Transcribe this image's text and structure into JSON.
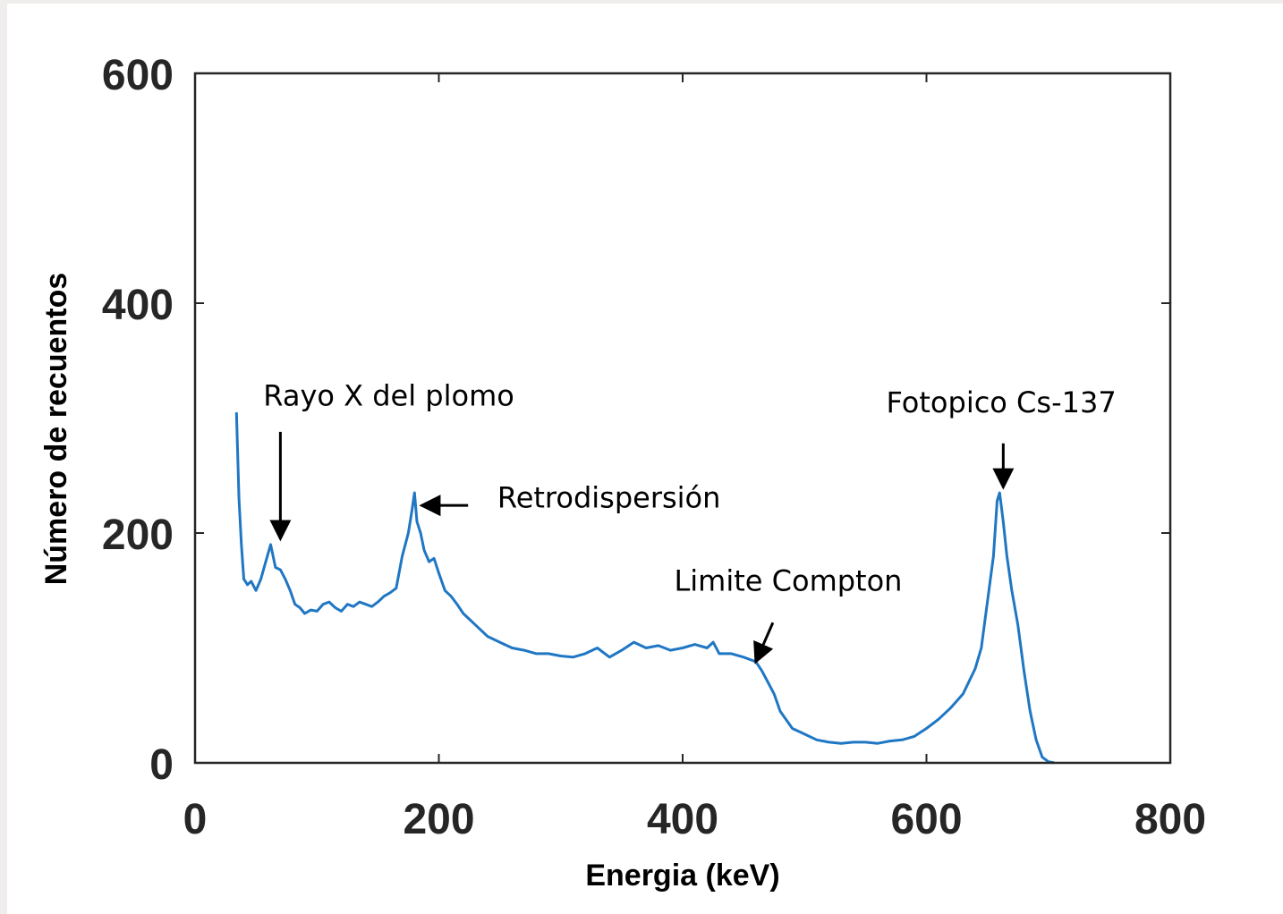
{
  "chart_data": {
    "type": "line",
    "title": "",
    "xlabel": "Energia (keV)",
    "ylabel": "Número de recuentos",
    "xlim": [
      0,
      800
    ],
    "ylim": [
      0,
      600
    ],
    "xticks": [
      0,
      200,
      400,
      600,
      800
    ],
    "yticks": [
      0,
      200,
      400,
      600
    ],
    "xtick_labels": [
      "0",
      "200",
      "400",
      "600",
      "800"
    ],
    "ytick_labels": [
      "0",
      "200",
      "400",
      "600"
    ],
    "grid": false,
    "line_color": "#1f77c4",
    "series": [
      {
        "name": "",
        "x": [
          34,
          36,
          38,
          40,
          43,
          46,
          50,
          54,
          58,
          62,
          66,
          70,
          74,
          78,
          82,
          86,
          90,
          95,
          100,
          105,
          110,
          115,
          120,
          125,
          130,
          135,
          140,
          145,
          150,
          155,
          160,
          165,
          170,
          175,
          178,
          180,
          182,
          185,
          188,
          192,
          196,
          200,
          205,
          210,
          215,
          220,
          225,
          230,
          240,
          250,
          260,
          270,
          280,
          290,
          300,
          310,
          320,
          330,
          340,
          350,
          360,
          370,
          380,
          390,
          400,
          410,
          420,
          425,
          430,
          440,
          450,
          460,
          465,
          470,
          475,
          480,
          490,
          500,
          510,
          520,
          530,
          540,
          550,
          560,
          570,
          580,
          590,
          600,
          610,
          620,
          630,
          640,
          645,
          650,
          655,
          658,
          660,
          663,
          666,
          670,
          675,
          680,
          685,
          690,
          695,
          700,
          705
        ],
        "y": [
          305,
          230,
          190,
          160,
          155,
          158,
          150,
          160,
          175,
          190,
          170,
          168,
          160,
          150,
          138,
          135,
          130,
          133,
          132,
          138,
          140,
          135,
          132,
          138,
          136,
          140,
          138,
          136,
          140,
          145,
          148,
          152,
          180,
          200,
          220,
          235,
          210,
          200,
          185,
          175,
          178,
          165,
          150,
          145,
          138,
          130,
          125,
          120,
          110,
          105,
          100,
          98,
          95,
          95,
          93,
          92,
          95,
          100,
          92,
          98,
          105,
          100,
          102,
          98,
          100,
          103,
          100,
          105,
          95,
          95,
          92,
          88,
          80,
          70,
          60,
          45,
          30,
          25,
          20,
          18,
          17,
          18,
          18,
          17,
          19,
          20,
          23,
          30,
          38,
          48,
          60,
          82,
          100,
          140,
          180,
          228,
          235,
          210,
          180,
          150,
          120,
          80,
          45,
          20,
          5,
          1,
          0
        ]
      }
    ],
    "annotations": [
      {
        "label": "Rayo X del plomo",
        "text_x": 56,
        "text_y": 311,
        "arrow_from": [
          70,
          288
        ],
        "arrow_to": [
          70,
          195
        ]
      },
      {
        "label": "Retrodispersión",
        "text_x": 248,
        "text_y": 222,
        "arrow_from": [
          224,
          224
        ],
        "arrow_to": [
          186,
          224
        ]
      },
      {
        "label": "Limite Compton",
        "text_x": 393,
        "text_y": 150,
        "arrow_from": [
          474,
          122
        ],
        "arrow_to": [
          460,
          88
        ]
      },
      {
        "label": "Fotopico Cs-137",
        "text_x": 567,
        "text_y": 305,
        "arrow_from": [
          663,
          278
        ],
        "arrow_to": [
          663,
          240
        ]
      }
    ]
  }
}
